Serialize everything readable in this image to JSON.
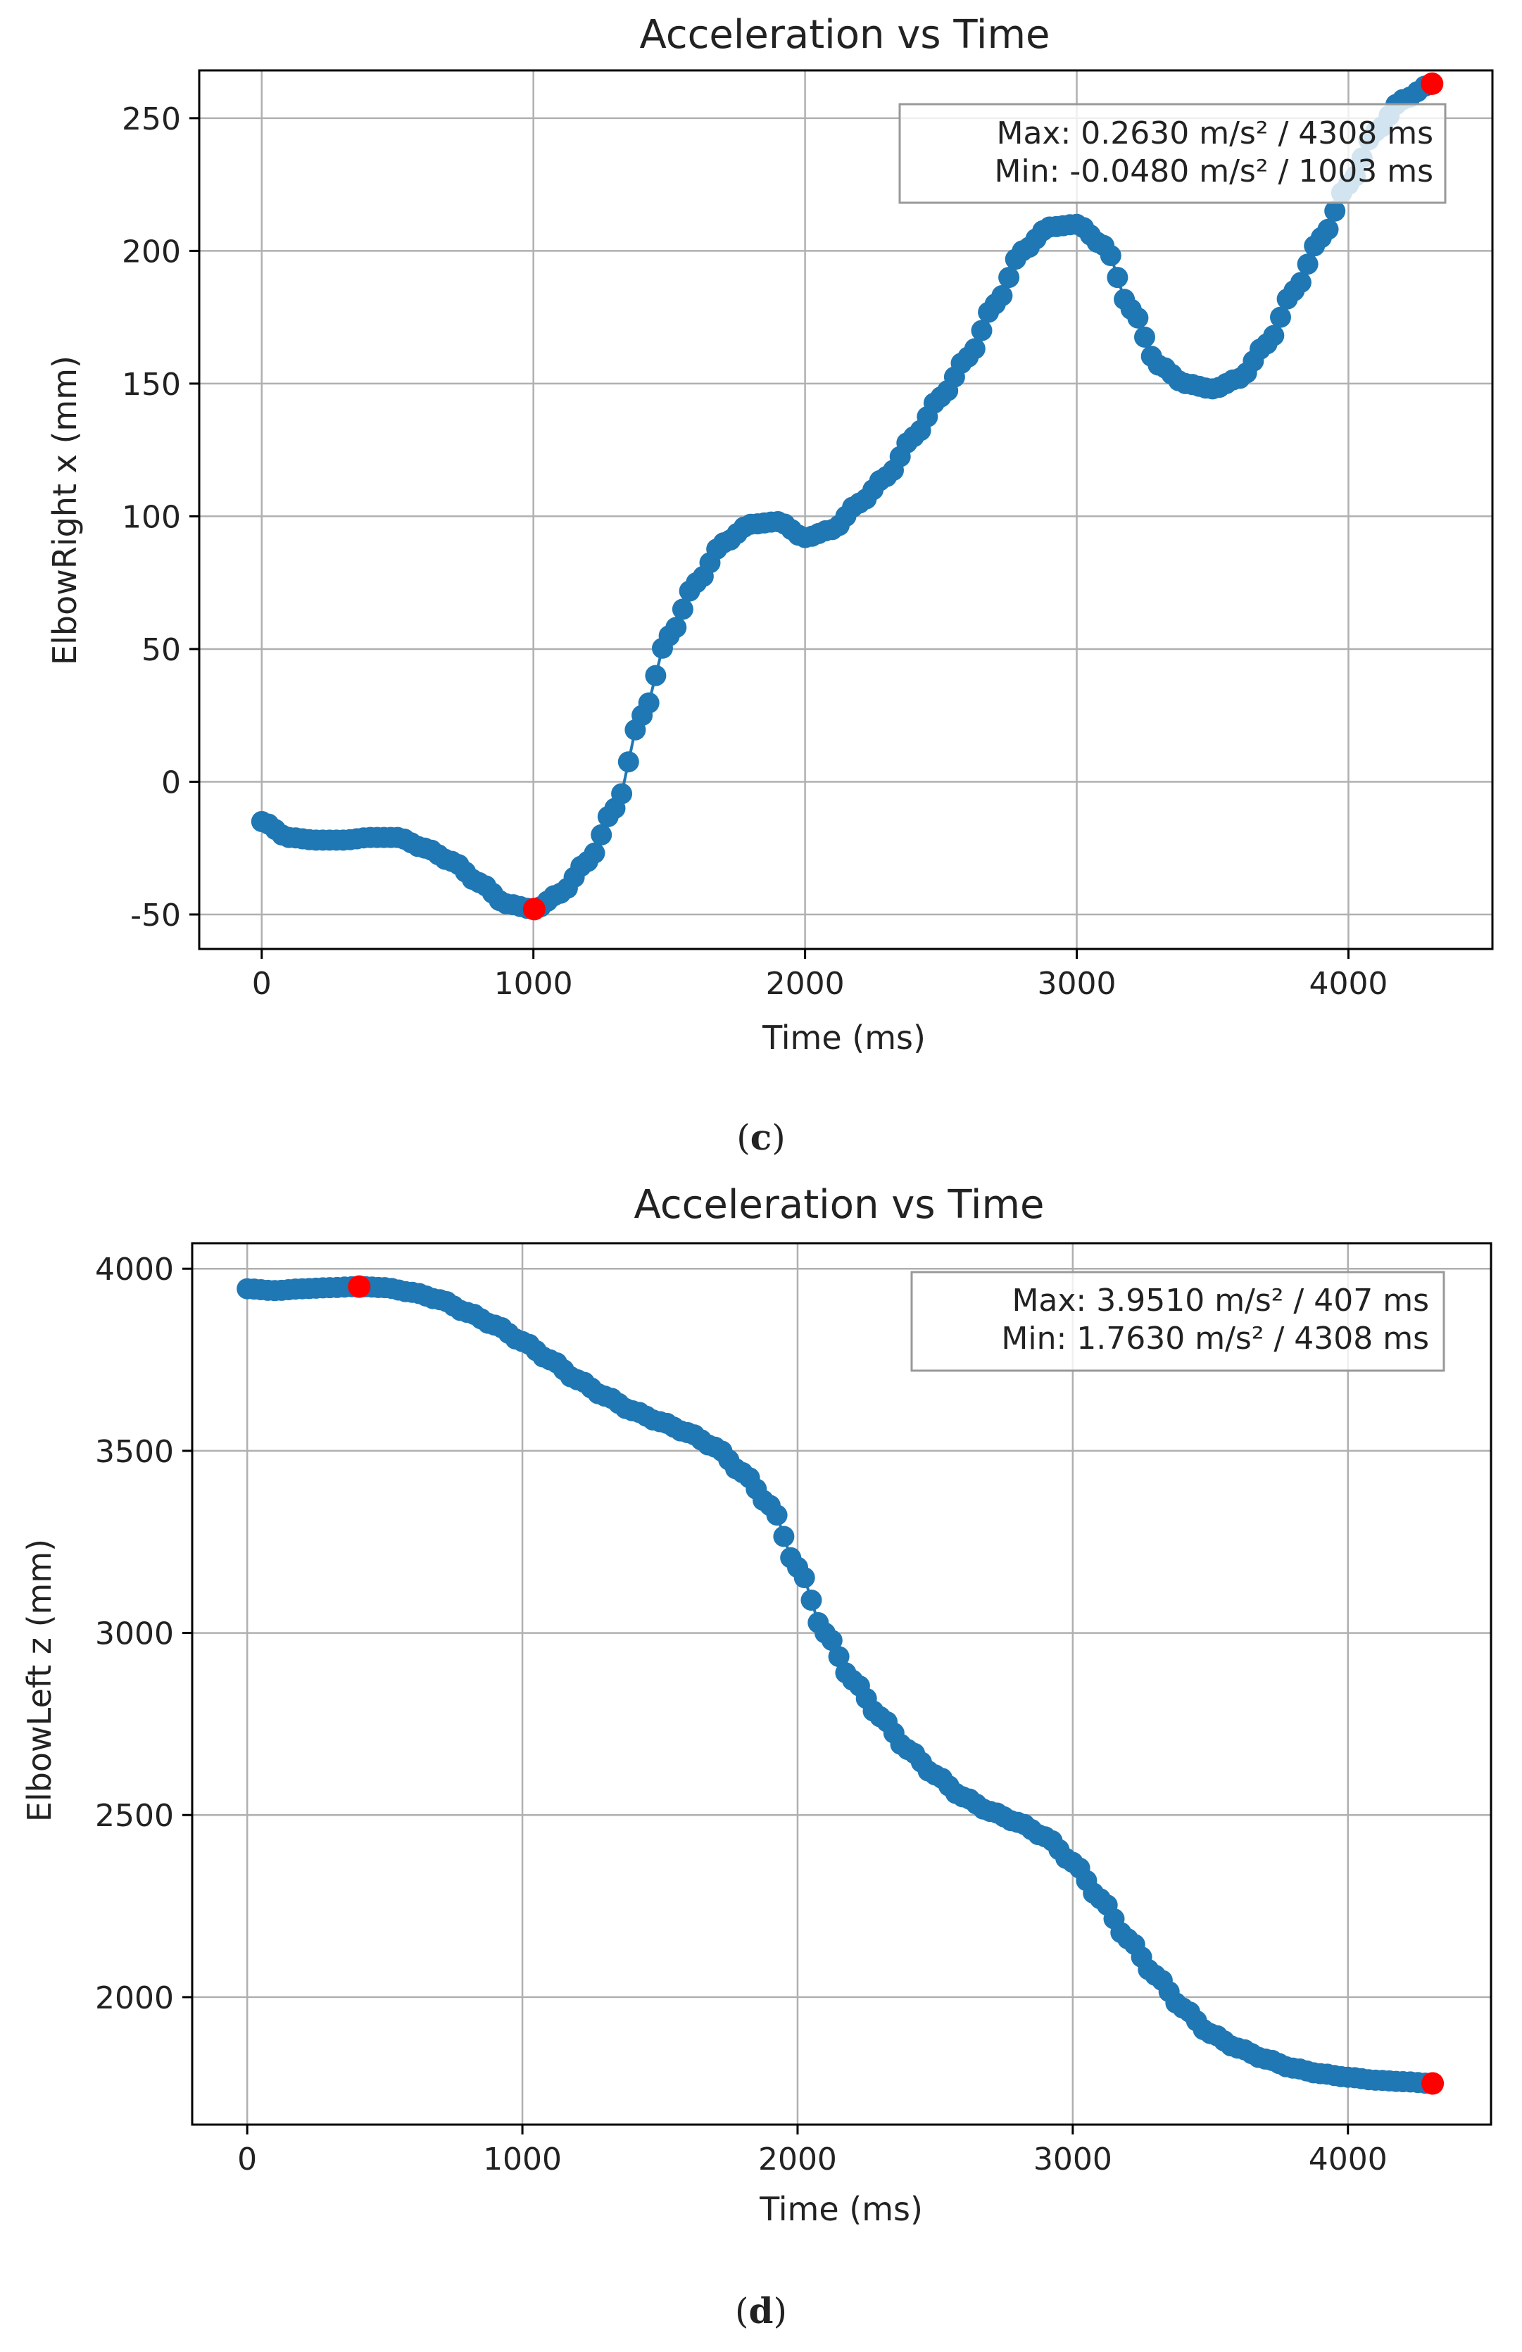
{
  "figure": {
    "caption_c": {
      "open": "(",
      "letter": "c",
      "close": ")"
    },
    "caption_d": {
      "open": "(",
      "letter": "d",
      "close": ")"
    }
  },
  "chart_data": [
    {
      "type": "scatter",
      "title": "Acceleration vs Time",
      "xlabel": "Time (ms)",
      "ylabel": "ElbowRight x (mm)",
      "xlim": [
        -230,
        4530
      ],
      "ylim": [
        -63,
        268
      ],
      "xticks": [
        0,
        1000,
        2000,
        3000,
        4000
      ],
      "yticks": [
        -50,
        0,
        50,
        100,
        150,
        200,
        250
      ],
      "grid": true,
      "legend_position": "top-right",
      "legend": [
        "Max: 0.2630 m/s² / 4308 ms",
        "Min: -0.0480 m/s² / 1003 ms"
      ],
      "series": [
        {
          "name": "ElbowRight x",
          "color": "#1f77b4",
          "x": [
            0,
            100,
            200,
            300,
            400,
            500,
            600,
            700,
            800,
            900,
            1003,
            1100,
            1200,
            1300,
            1400,
            1500,
            1600,
            1700,
            1800,
            1900,
            2000,
            2100,
            2200,
            2300,
            2400,
            2500,
            2600,
            2700,
            2800,
            2900,
            3000,
            3100,
            3200,
            3300,
            3400,
            3500,
            3600,
            3700,
            3800,
            3900,
            4000,
            4100,
            4200,
            4308
          ],
          "y": [
            -15,
            -21,
            -22,
            -22,
            -21,
            -21,
            -25,
            -30,
            -38,
            -46,
            -48,
            -42,
            -30,
            -10,
            25,
            55,
            75,
            90,
            97,
            98,
            92,
            95,
            105,
            115,
            130,
            145,
            160,
            180,
            200,
            209,
            210,
            202,
            178,
            157,
            150,
            148,
            152,
            165,
            185,
            205,
            225,
            245,
            257,
            263
          ]
        }
      ],
      "highlights": [
        {
          "label": "max",
          "x": 4308,
          "y": 263,
          "color": "#ff0000"
        },
        {
          "label": "min",
          "x": 1003,
          "y": -48,
          "color": "#ff0000"
        }
      ]
    },
    {
      "type": "scatter",
      "title": "Acceleration vs Time",
      "xlabel": "Time (ms)",
      "ylabel": "ElbowLeft z (mm)",
      "xlim": [
        -200,
        4520
      ],
      "ylim": [
        1650,
        4070
      ],
      "xticks": [
        0,
        1000,
        2000,
        3000,
        4000
      ],
      "yticks": [
        2000,
        2500,
        3000,
        3500,
        4000
      ],
      "grid": true,
      "legend_position": "top-right",
      "legend": [
        "Max: 3.9510 m/s² / 407 ms",
        "Min: 1.7630 m/s² / 4308 ms"
      ],
      "series": [
        {
          "name": "ElbowLeft z",
          "color": "#1f77b4",
          "x": [
            0,
            100,
            200,
            300,
            407,
            500,
            600,
            700,
            800,
            900,
            1000,
            1100,
            1200,
            1300,
            1400,
            1500,
            1600,
            1700,
            1800,
            1900,
            2000,
            2100,
            2200,
            2300,
            2400,
            2500,
            2600,
            2700,
            2800,
            2900,
            3000,
            3100,
            3200,
            3300,
            3400,
            3500,
            3600,
            3700,
            3800,
            3900,
            4000,
            4100,
            4200,
            4308
          ],
          "y": [
            3945,
            3940,
            3945,
            3948,
            3951,
            3948,
            3935,
            3915,
            3880,
            3845,
            3800,
            3750,
            3695,
            3650,
            3610,
            3580,
            3550,
            3510,
            3440,
            3350,
            3180,
            3000,
            2870,
            2770,
            2680,
            2610,
            2550,
            2510,
            2480,
            2440,
            2370,
            2270,
            2160,
            2060,
            1970,
            1900,
            1860,
            1830,
            1805,
            1790,
            1780,
            1772,
            1768,
            1763
          ]
        }
      ],
      "highlights": [
        {
          "label": "max",
          "x": 407,
          "y": 3951,
          "color": "#ff0000"
        },
        {
          "label": "min",
          "x": 4308,
          "y": 1763,
          "color": "#ff0000"
        }
      ]
    }
  ]
}
